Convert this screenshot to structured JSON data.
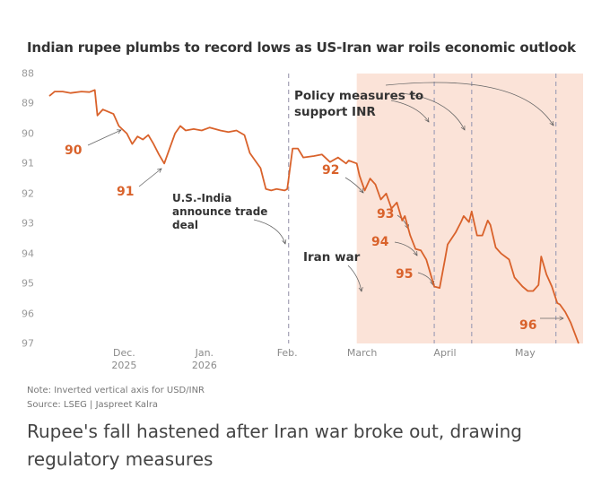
{
  "chart_data": {
    "type": "line",
    "title": "Indian rupee plumbs to record lows as US-Iran war roils economic outlook",
    "note": "Note: Inverted vertical axis for USD/INR",
    "source": "Source: LSEG | Jaspreet Kalra",
    "caption": "Rupee's fall hastened after Iran war broke out, drawing regulatory measures",
    "ylim": [
      88,
      97
    ],
    "y_inverted": true,
    "yticks": [
      88,
      89,
      90,
      91,
      92,
      93,
      94,
      95,
      96,
      97
    ],
    "xlim": [
      0,
      198
    ],
    "xticks": [
      {
        "value": 28,
        "label": "Dec.\n2025"
      },
      {
        "value": 58,
        "label": "Jan.\n2026"
      },
      {
        "value": 89,
        "label": "Feb."
      },
      {
        "value": 117,
        "label": "March"
      },
      {
        "value": 148,
        "label": "April"
      },
      {
        "value": 178,
        "label": "May"
      }
    ],
    "grid": false,
    "shade_from": 115,
    "shade_color": "#fbe3d8",
    "event_lines": [
      89.5,
      144,
      158,
      189.5
    ],
    "event_color": "#a9a6ba",
    "series": [
      {
        "name": "USD/INR",
        "color": "#d9622b",
        "x": [
          0,
          2,
          5,
          8,
          12,
          15,
          17,
          18,
          20,
          24,
          26,
          29,
          31,
          33,
          35,
          37,
          39,
          41,
          43,
          45,
          47,
          49,
          51,
          54,
          57,
          60,
          64,
          67,
          70,
          73,
          75,
          77,
          79,
          81,
          83,
          85,
          88,
          89,
          91,
          93,
          95,
          99,
          102,
          105,
          108,
          111,
          112,
          115,
          116,
          118,
          120,
          122,
          124,
          126,
          128,
          130,
          132,
          133,
          135,
          137,
          139,
          141,
          143,
          144,
          146,
          148,
          149,
          152,
          154,
          155,
          157,
          158,
          160,
          162,
          164,
          165,
          167,
          169,
          172,
          174,
          177,
          179,
          181,
          183,
          184,
          186,
          188,
          190,
          191,
          193,
          195,
          198
        ],
        "values": [
          88.75,
          88.6,
          88.6,
          88.65,
          88.6,
          88.62,
          88.55,
          89.4,
          89.2,
          89.35,
          89.75,
          90.0,
          90.35,
          90.1,
          90.2,
          90.05,
          90.35,
          90.7,
          91.0,
          90.5,
          90.0,
          89.75,
          89.9,
          89.85,
          89.9,
          89.8,
          89.9,
          89.95,
          89.9,
          90.05,
          90.65,
          90.9,
          91.15,
          91.85,
          91.9,
          91.85,
          91.9,
          91.85,
          90.5,
          90.5,
          90.8,
          90.75,
          90.7,
          90.95,
          90.8,
          91.0,
          90.9,
          91.0,
          91.4,
          91.9,
          91.5,
          91.7,
          92.2,
          92.0,
          92.5,
          92.3,
          92.9,
          92.75,
          93.4,
          93.85,
          93.9,
          94.2,
          94.8,
          95.1,
          95.15,
          94.2,
          93.7,
          93.3,
          92.95,
          92.75,
          92.95,
          92.6,
          93.4,
          93.4,
          92.9,
          93.05,
          93.8,
          94.0,
          94.2,
          94.8,
          95.1,
          95.25,
          95.25,
          95.05,
          94.1,
          94.7,
          95.1,
          95.65,
          95.7,
          95.95,
          96.3,
          97.0
        ]
      }
    ],
    "annotations": [
      "90",
      "91",
      "92",
      "93",
      "94",
      "95",
      "96",
      "U.S.-India\nannounce trade\ndeal",
      "Iran war",
      "Policy measures to\nsupport INR"
    ]
  }
}
